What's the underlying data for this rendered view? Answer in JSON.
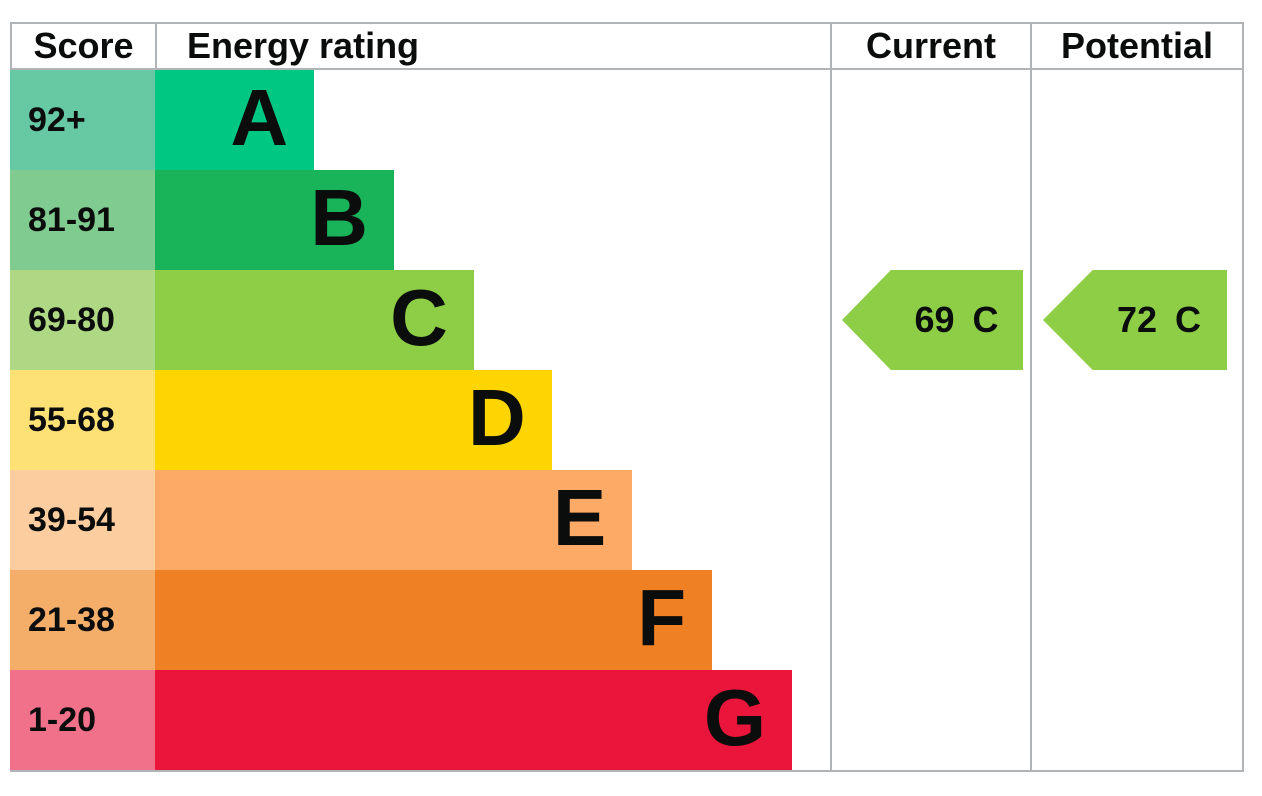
{
  "table": {
    "headers": {
      "score": "Score",
      "energy_rating": "Energy rating",
      "current": "Current",
      "potential": "Potential"
    },
    "bands": [
      {
        "score_range": "92+",
        "letter": "A",
        "bar_color": "#00c781",
        "score_color": "#66c9a4",
        "width_pct": 23.5
      },
      {
        "score_range": "81-91",
        "letter": "B",
        "bar_color": "#19b459",
        "score_color": "#7fcb90",
        "width_pct": 35.3
      },
      {
        "score_range": "69-80",
        "letter": "C",
        "bar_color": "#8dce46",
        "score_color": "#afd884",
        "width_pct": 47.1
      },
      {
        "score_range": "55-68",
        "letter": "D",
        "bar_color": "#ffd500",
        "score_color": "#fde175",
        "width_pct": 58.6
      },
      {
        "score_range": "39-54",
        "letter": "E",
        "bar_color": "#fcaa65",
        "score_color": "#fcce9f",
        "width_pct": 70.5
      },
      {
        "score_range": "21-38",
        "letter": "F",
        "bar_color": "#ef8023",
        "score_color": "#f4ae6a",
        "width_pct": 82.3
      },
      {
        "score_range": "1-20",
        "letter": "G",
        "bar_color": "#e9153b",
        "score_color": "#f1718b",
        "width_pct": 94.1
      }
    ],
    "current": {
      "value": "69",
      "letter": "C",
      "band_row": 2,
      "arrow_color": "#8dce46"
    },
    "potential": {
      "value": "72",
      "letter": "C",
      "band_row": 2,
      "arrow_color": "#8dce46"
    }
  },
  "chart_data": {
    "type": "bar",
    "title": "Energy rating",
    "categories": [
      "A",
      "B",
      "C",
      "D",
      "E",
      "F",
      "G"
    ],
    "score_ranges": [
      "92+",
      "81-91",
      "69-80",
      "55-68",
      "39-54",
      "21-38",
      "1-20"
    ],
    "band_colors": [
      "#00c781",
      "#19b459",
      "#8dce46",
      "#ffd500",
      "#fcaa65",
      "#ef8023",
      "#e9153b"
    ],
    "bar_width_pct": [
      23.5,
      35.3,
      47.1,
      58.6,
      70.5,
      82.3,
      94.1
    ],
    "scale": [
      1,
      100
    ],
    "markers": [
      {
        "label": "Current",
        "score": 69,
        "band": "C"
      },
      {
        "label": "Potential",
        "score": 72,
        "band": "C"
      }
    ],
    "legend_position": "none",
    "grid": false
  }
}
